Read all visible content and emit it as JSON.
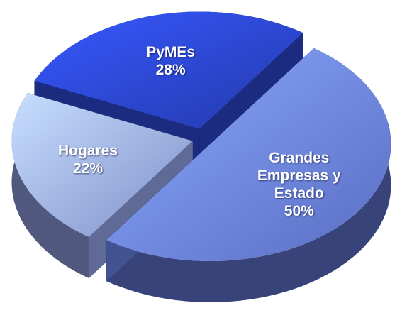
{
  "chart_data": {
    "type": "pie",
    "categories": [
      "Grandes Empresas y Estado",
      "Hogares",
      "PyMEs"
    ],
    "values": [
      50,
      22,
      28
    ],
    "value_labels": [
      "50%",
      "22%",
      "28%"
    ],
    "colors": [
      "#6f88f2",
      "#9fb2fa",
      "#2c47d6"
    ]
  }
}
